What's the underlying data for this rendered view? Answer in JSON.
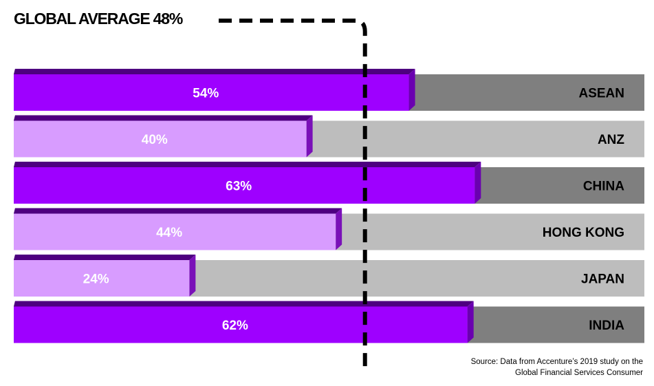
{
  "chart_data": {
    "type": "bar",
    "orientation": "horizontal",
    "average_label": "GLOBAL AVERAGE 48%",
    "average_value": 48,
    "categories": [
      "ASEAN",
      "ANZ",
      "CHINA",
      "HONG KONG",
      "JAPAN",
      "INDIA"
    ],
    "values": [
      54,
      40,
      63,
      44,
      24,
      62
    ],
    "value_labels": [
      "54%",
      "40%",
      "63%",
      "44%",
      "24%",
      "62%"
    ],
    "above_average": [
      true,
      false,
      true,
      false,
      false,
      true
    ],
    "xlim": [
      0,
      100
    ],
    "grid": false,
    "legend": "none"
  },
  "colors": {
    "above_bar": "#9e00ff",
    "above_bar_top": "#4e0080",
    "above_bar_side": "#6a00b0",
    "below_bar": "#d89cff",
    "below_bar_top": "#4e0080",
    "below_bar_side": "#7a10b8",
    "above_track": "#7f7f7f",
    "below_track": "#bdbdbd",
    "avg_line": "#000000"
  },
  "source": {
    "line1": "Source: Data from Accenture’s 2019 study on the",
    "line2": "Global Financial Services Consumer"
  }
}
